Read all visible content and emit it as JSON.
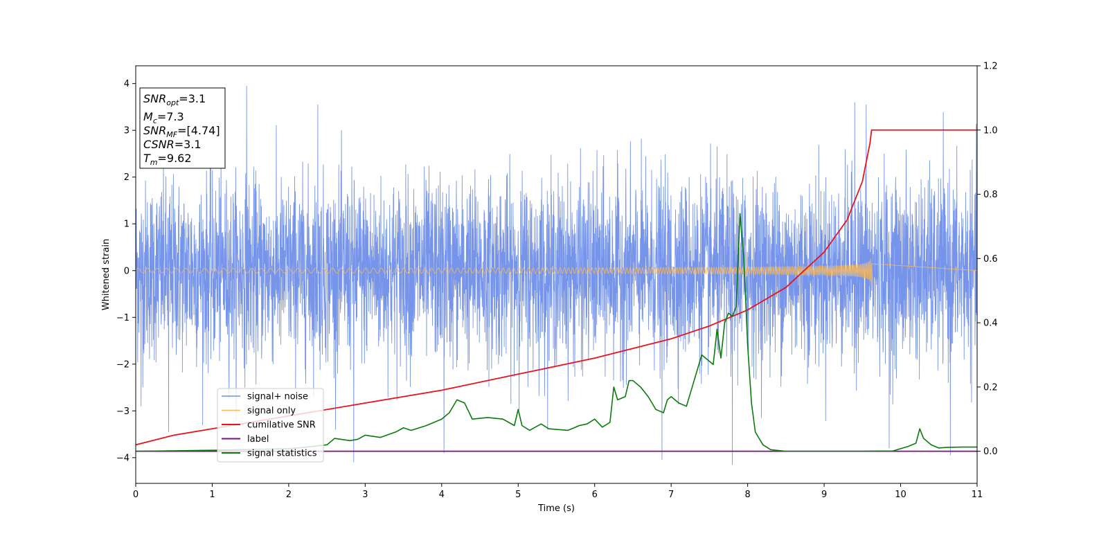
{
  "chart_data": {
    "type": "line",
    "xlabel": "Time (s)",
    "ylabel": "Whitened strain",
    "xlim": [
      0,
      11
    ],
    "ylim_left": [
      -4.55,
      4.38
    ],
    "ylim_right": [
      -0.1,
      1.2
    ],
    "grid": false,
    "legend_position": "lower-left",
    "x_ticks": [
      "0",
      "1",
      "2",
      "3",
      "4",
      "5",
      "6",
      "7",
      "8",
      "9",
      "10",
      "11"
    ],
    "y_ticks_left": [
      "−4",
      "−3",
      "−2",
      "−1",
      "0",
      "1",
      "2",
      "3",
      "4"
    ],
    "y_ticks_right": [
      "0.0",
      "0.2",
      "0.4",
      "0.6",
      "0.8",
      "1.0",
      "1.2"
    ],
    "annotation": {
      "lines": [
        {
          "base": "SNR",
          "sub": "opt",
          "value": "=3.1"
        },
        {
          "base": "M",
          "sub": "c",
          "value": "=7.3"
        },
        {
          "base": "SNR",
          "sub": "MF",
          "value": "=[4.74]"
        },
        {
          "base": "CSNR",
          "sub": "",
          "value": "=3.1"
        },
        {
          "base": "T",
          "sub": "m",
          "value": "=9.62"
        }
      ]
    },
    "series": [
      {
        "name": "signal+ noise",
        "color": "#6f8ee8",
        "axis": "left",
        "description_values": {
          "noise_std": 1.0,
          "sample_rate_hz": 400
        },
        "peaks": [
          [
            1.45,
            3.95
          ],
          [
            2.38,
            3.55
          ],
          [
            9.4,
            3.6
          ],
          [
            9.55,
            3.55
          ],
          [
            0.07,
            -2.9
          ],
          [
            0.43,
            -3.45
          ],
          [
            2.85,
            -4.1
          ],
          [
            4.03,
            -3.9
          ],
          [
            6.88,
            -4.05
          ],
          [
            7.8,
            -4.15
          ],
          [
            9.85,
            -3.8
          ],
          [
            10.65,
            -3.95
          ]
        ]
      },
      {
        "name": "signal only",
        "color": "#f5b860",
        "axis": "left",
        "chirp": {
          "t_merge": 9.62,
          "amp_at_merge": 0.38,
          "f_start_hz": 8,
          "f_end_hz": 60
        }
      },
      {
        "name": "cumilative SNR",
        "color": "#e8141a",
        "axis": "right",
        "x": [
          0,
          0.5,
          1,
          2,
          3,
          4,
          5,
          6,
          7,
          7.5,
          8,
          8.5,
          9,
          9.3,
          9.5,
          9.6,
          9.62,
          11
        ],
        "values": [
          0.02,
          0.05,
          0.07,
          0.11,
          0.15,
          0.19,
          0.24,
          0.29,
          0.35,
          0.39,
          0.44,
          0.51,
          0.62,
          0.72,
          0.84,
          0.96,
          1.0,
          1.0
        ]
      },
      {
        "name": "label",
        "color": "#7b0e85",
        "axis": "right",
        "x": [
          0,
          11
        ],
        "values": [
          0.0,
          0.0
        ]
      },
      {
        "name": "signal statistics",
        "color": "#0a7a0a",
        "axis": "right",
        "x": [
          0,
          1,
          2,
          2.2,
          2.5,
          2.6,
          2.8,
          2.9,
          3.0,
          3.2,
          3.4,
          3.5,
          3.6,
          3.8,
          3.9,
          4.0,
          4.1,
          4.2,
          4.3,
          4.4,
          4.6,
          4.8,
          4.95,
          5.0,
          5.05,
          5.15,
          5.3,
          5.4,
          5.5,
          5.65,
          5.8,
          5.9,
          6.0,
          6.1,
          6.2,
          6.25,
          6.3,
          6.4,
          6.45,
          6.5,
          6.6,
          6.7,
          6.8,
          6.9,
          6.95,
          7.0,
          7.1,
          7.2,
          7.3,
          7.4,
          7.5,
          7.55,
          7.6,
          7.65,
          7.7,
          7.75,
          7.8,
          7.85,
          7.9,
          7.95,
          8.0,
          8.05,
          8.1,
          8.2,
          8.3,
          8.5,
          9.0,
          9.5,
          9.9,
          10.1,
          10.2,
          10.25,
          10.3,
          10.4,
          10.5,
          10.6,
          10.8,
          11.0
        ],
        "values": [
          0.0,
          0.003,
          0.008,
          0.012,
          0.02,
          0.04,
          0.033,
          0.037,
          0.05,
          0.043,
          0.06,
          0.073,
          0.065,
          0.08,
          0.09,
          0.1,
          0.12,
          0.16,
          0.15,
          0.1,
          0.105,
          0.1,
          0.08,
          0.13,
          0.08,
          0.065,
          0.085,
          0.07,
          0.068,
          0.065,
          0.08,
          0.085,
          0.1,
          0.075,
          0.09,
          0.2,
          0.16,
          0.17,
          0.22,
          0.22,
          0.2,
          0.17,
          0.13,
          0.12,
          0.16,
          0.17,
          0.15,
          0.14,
          0.22,
          0.3,
          0.28,
          0.27,
          0.38,
          0.29,
          0.4,
          0.43,
          0.42,
          0.45,
          0.74,
          0.6,
          0.33,
          0.15,
          0.06,
          0.02,
          0.005,
          0.0,
          0.0,
          0.0,
          0.001,
          0.015,
          0.025,
          0.07,
          0.04,
          0.02,
          0.01,
          0.012,
          0.013,
          0.013
        ]
      }
    ]
  }
}
